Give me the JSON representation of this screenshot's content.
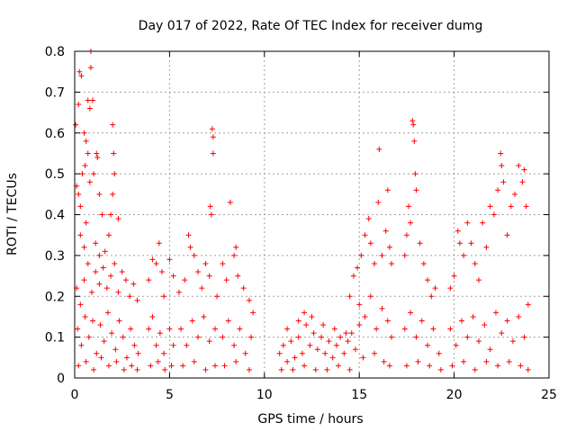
{
  "chart_data": {
    "type": "scatter",
    "title": "Day 017 of 2022, Rate Of TEC Index for receiver dumg",
    "xlabel": "GPS time / hours",
    "ylabel": "ROTI / TECUs",
    "xlim": [
      0,
      25
    ],
    "ylim": [
      0,
      0.8
    ],
    "xticks": [
      "0",
      "5",
      "10",
      "15",
      "20",
      "25"
    ],
    "yticks": [
      "0",
      "0.1",
      "0.2",
      "0.3",
      "0.4",
      "0.5",
      "0.6",
      "0.7",
      "0.8"
    ],
    "grid": true,
    "marker": "+",
    "color": "#ff0000",
    "x_ticks_values": [
      0,
      5,
      10,
      15,
      20,
      25
    ],
    "y_ticks_values": [
      0,
      0.1,
      0.2,
      0.3,
      0.4,
      0.5,
      0.6,
      0.7,
      0.8
    ],
    "series": [
      {
        "points": [
          [
            0.05,
            0.62
          ],
          [
            0.2,
            0.67
          ],
          [
            0.25,
            0.75
          ],
          [
            0.35,
            0.74
          ],
          [
            0.5,
            0.6
          ],
          [
            0.6,
            0.58
          ],
          [
            0.7,
            0.68
          ],
          [
            0.8,
            0.66
          ],
          [
            0.85,
            0.8
          ],
          [
            0.85,
            0.76
          ],
          [
            0.95,
            0.68
          ],
          [
            0.1,
            0.47
          ],
          [
            0.2,
            0.45
          ],
          [
            0.3,
            0.42
          ],
          [
            0.4,
            0.5
          ],
          [
            0.55,
            0.52
          ],
          [
            0.7,
            0.55
          ],
          [
            0.8,
            0.48
          ],
          [
            1.0,
            0.5
          ],
          [
            1.15,
            0.55
          ],
          [
            1.2,
            0.54
          ],
          [
            1.3,
            0.45
          ],
          [
            1.45,
            0.4
          ],
          [
            1.8,
            0.35
          ],
          [
            1.9,
            0.4
          ],
          [
            2.0,
            0.62
          ],
          [
            2.05,
            0.55
          ],
          [
            2.1,
            0.5
          ],
          [
            2.0,
            0.45
          ],
          [
            2.3,
            0.39
          ],
          [
            0.3,
            0.35
          ],
          [
            0.5,
            0.32
          ],
          [
            0.6,
            0.38
          ],
          [
            1.1,
            0.33
          ],
          [
            1.3,
            0.3
          ],
          [
            1.6,
            0.31
          ],
          [
            0.1,
            0.22
          ],
          [
            0.3,
            0.18
          ],
          [
            0.5,
            0.24
          ],
          [
            0.7,
            0.28
          ],
          [
            0.9,
            0.21
          ],
          [
            1.1,
            0.26
          ],
          [
            1.3,
            0.23
          ],
          [
            1.5,
            0.27
          ],
          [
            1.7,
            0.22
          ],
          [
            1.9,
            0.25
          ],
          [
            2.1,
            0.28
          ],
          [
            2.3,
            0.21
          ],
          [
            2.5,
            0.26
          ],
          [
            2.7,
            0.24
          ],
          [
            2.9,
            0.2
          ],
          [
            3.1,
            0.23
          ],
          [
            3.3,
            0.19
          ],
          [
            0.15,
            0.12
          ],
          [
            0.35,
            0.08
          ],
          [
            0.55,
            0.15
          ],
          [
            0.75,
            0.1
          ],
          [
            0.95,
            0.14
          ],
          [
            1.15,
            0.06
          ],
          [
            1.35,
            0.13
          ],
          [
            1.55,
            0.09
          ],
          [
            1.75,
            0.16
          ],
          [
            1.95,
            0.11
          ],
          [
            2.15,
            0.07
          ],
          [
            2.35,
            0.14
          ],
          [
            2.55,
            0.1
          ],
          [
            2.75,
            0.05
          ],
          [
            2.95,
            0.12
          ],
          [
            3.15,
            0.08
          ],
          [
            3.35,
            0.06
          ],
          [
            0.2,
            0.03
          ],
          [
            0.6,
            0.04
          ],
          [
            1.0,
            0.02
          ],
          [
            1.4,
            0.05
          ],
          [
            1.8,
            0.03
          ],
          [
            2.2,
            0.04
          ],
          [
            2.6,
            0.02
          ],
          [
            3.0,
            0.03
          ],
          [
            3.3,
            0.02
          ],
          [
            3.9,
            0.24
          ],
          [
            4.1,
            0.29
          ],
          [
            4.3,
            0.28
          ],
          [
            4.45,
            0.33
          ],
          [
            4.6,
            0.26
          ],
          [
            4.7,
            0.2
          ],
          [
            3.9,
            0.12
          ],
          [
            4.1,
            0.15
          ],
          [
            4.3,
            0.08
          ],
          [
            4.5,
            0.11
          ],
          [
            4.7,
            0.06
          ],
          [
            4.0,
            0.03
          ],
          [
            4.4,
            0.04
          ],
          [
            4.75,
            0.02
          ],
          [
            5.0,
            0.29
          ],
          [
            5.2,
            0.25
          ],
          [
            5.0,
            0.12
          ],
          [
            5.2,
            0.08
          ],
          [
            5.1,
            0.03
          ],
          [
            5.5,
            0.21
          ],
          [
            5.8,
            0.24
          ],
          [
            6.0,
            0.35
          ],
          [
            6.1,
            0.32
          ],
          [
            6.3,
            0.3
          ],
          [
            6.5,
            0.26
          ],
          [
            6.7,
            0.22
          ],
          [
            6.9,
            0.28
          ],
          [
            7.1,
            0.25
          ],
          [
            7.15,
            0.42
          ],
          [
            7.2,
            0.4
          ],
          [
            7.25,
            0.61
          ],
          [
            7.3,
            0.59
          ],
          [
            7.3,
            0.55
          ],
          [
            7.5,
            0.2
          ],
          [
            5.6,
            0.12
          ],
          [
            5.9,
            0.08
          ],
          [
            6.2,
            0.14
          ],
          [
            6.5,
            0.1
          ],
          [
            6.8,
            0.15
          ],
          [
            7.1,
            0.09
          ],
          [
            7.4,
            0.12
          ],
          [
            5.7,
            0.03
          ],
          [
            6.3,
            0.04
          ],
          [
            6.9,
            0.02
          ],
          [
            7.4,
            0.03
          ],
          [
            7.8,
            0.28
          ],
          [
            8.0,
            0.24
          ],
          [
            8.2,
            0.43
          ],
          [
            8.4,
            0.3
          ],
          [
            8.5,
            0.32
          ],
          [
            8.6,
            0.25
          ],
          [
            8.9,
            0.22
          ],
          [
            9.2,
            0.19
          ],
          [
            9.4,
            0.16
          ],
          [
            7.8,
            0.1
          ],
          [
            8.1,
            0.14
          ],
          [
            8.4,
            0.08
          ],
          [
            8.7,
            0.12
          ],
          [
            9.0,
            0.06
          ],
          [
            9.3,
            0.1
          ],
          [
            7.9,
            0.03
          ],
          [
            8.5,
            0.04
          ],
          [
            9.2,
            0.02
          ],
          [
            10.8,
            0.06
          ],
          [
            11.0,
            0.08
          ],
          [
            11.2,
            0.04
          ],
          [
            11.4,
            0.09
          ],
          [
            11.6,
            0.05
          ],
          [
            11.8,
            0.1
          ],
          [
            12.0,
            0.06
          ],
          [
            12.2,
            0.13
          ],
          [
            12.4,
            0.08
          ],
          [
            12.6,
            0.11
          ],
          [
            12.8,
            0.07
          ],
          [
            13.0,
            0.1
          ],
          [
            13.2,
            0.06
          ],
          [
            13.4,
            0.09
          ],
          [
            13.6,
            0.05
          ],
          [
            13.8,
            0.08
          ],
          [
            14.0,
            0.1
          ],
          [
            14.2,
            0.06
          ],
          [
            14.4,
            0.09
          ],
          [
            14.6,
            0.11
          ],
          [
            14.8,
            0.07
          ],
          [
            15.0,
            0.13
          ],
          [
            11.2,
            0.12
          ],
          [
            11.8,
            0.14
          ],
          [
            12.1,
            0.16
          ],
          [
            12.5,
            0.15
          ],
          [
            13.1,
            0.13
          ],
          [
            13.7,
            0.12
          ],
          [
            14.3,
            0.11
          ],
          [
            10.9,
            0.02
          ],
          [
            11.5,
            0.02
          ],
          [
            12.1,
            0.03
          ],
          [
            12.7,
            0.02
          ],
          [
            13.3,
            0.02
          ],
          [
            13.9,
            0.03
          ],
          [
            14.5,
            0.02
          ],
          [
            14.5,
            0.2
          ],
          [
            14.7,
            0.25
          ],
          [
            14.9,
            0.27
          ],
          [
            15.1,
            0.3
          ],
          [
            15.3,
            0.35
          ],
          [
            15.5,
            0.39
          ],
          [
            15.6,
            0.33
          ],
          [
            15.8,
            0.28
          ],
          [
            16.0,
            0.43
          ],
          [
            16.05,
            0.56
          ],
          [
            16.2,
            0.3
          ],
          [
            16.4,
            0.36
          ],
          [
            16.5,
            0.46
          ],
          [
            16.6,
            0.32
          ],
          [
            16.7,
            0.28
          ],
          [
            15.0,
            0.18
          ],
          [
            15.3,
            0.15
          ],
          [
            15.6,
            0.2
          ],
          [
            15.9,
            0.12
          ],
          [
            16.2,
            0.17
          ],
          [
            16.5,
            0.14
          ],
          [
            16.7,
            0.1
          ],
          [
            15.2,
            0.05
          ],
          [
            15.8,
            0.06
          ],
          [
            16.3,
            0.04
          ],
          [
            16.6,
            0.03
          ],
          [
            17.4,
            0.3
          ],
          [
            17.5,
            0.35
          ],
          [
            17.6,
            0.42
          ],
          [
            17.7,
            0.38
          ],
          [
            17.8,
            0.63
          ],
          [
            17.85,
            0.62
          ],
          [
            17.9,
            0.58
          ],
          [
            17.95,
            0.5
          ],
          [
            18.0,
            0.46
          ],
          [
            18.2,
            0.33
          ],
          [
            18.4,
            0.28
          ],
          [
            18.6,
            0.24
          ],
          [
            18.8,
            0.2
          ],
          [
            19.0,
            0.22
          ],
          [
            17.4,
            0.12
          ],
          [
            17.7,
            0.16
          ],
          [
            18.0,
            0.1
          ],
          [
            18.3,
            0.14
          ],
          [
            18.6,
            0.08
          ],
          [
            18.9,
            0.12
          ],
          [
            19.2,
            0.06
          ],
          [
            17.5,
            0.03
          ],
          [
            18.1,
            0.04
          ],
          [
            18.7,
            0.03
          ],
          [
            19.3,
            0.02
          ],
          [
            19.8,
            0.22
          ],
          [
            20.0,
            0.25
          ],
          [
            20.2,
            0.36
          ],
          [
            20.3,
            0.33
          ],
          [
            20.5,
            0.3
          ],
          [
            20.7,
            0.38
          ],
          [
            20.9,
            0.33
          ],
          [
            21.1,
            0.28
          ],
          [
            21.3,
            0.24
          ],
          [
            21.5,
            0.38
          ],
          [
            21.7,
            0.32
          ],
          [
            21.9,
            0.42
          ],
          [
            22.1,
            0.4
          ],
          [
            22.3,
            0.46
          ],
          [
            22.45,
            0.55
          ],
          [
            22.5,
            0.52
          ],
          [
            22.6,
            0.48
          ],
          [
            22.8,
            0.35
          ],
          [
            23.0,
            0.42
          ],
          [
            23.2,
            0.45
          ],
          [
            23.4,
            0.52
          ],
          [
            23.6,
            0.48
          ],
          [
            23.7,
            0.51
          ],
          [
            23.8,
            0.42
          ],
          [
            19.8,
            0.12
          ],
          [
            20.1,
            0.08
          ],
          [
            20.4,
            0.14
          ],
          [
            20.7,
            0.1
          ],
          [
            21.0,
            0.15
          ],
          [
            21.3,
            0.09
          ],
          [
            21.6,
            0.13
          ],
          [
            21.9,
            0.07
          ],
          [
            22.2,
            0.16
          ],
          [
            22.5,
            0.11
          ],
          [
            22.8,
            0.14
          ],
          [
            23.1,
            0.09
          ],
          [
            23.4,
            0.15
          ],
          [
            23.7,
            0.1
          ],
          [
            23.9,
            0.18
          ],
          [
            19.9,
            0.03
          ],
          [
            20.5,
            0.04
          ],
          [
            21.1,
            0.02
          ],
          [
            21.7,
            0.04
          ],
          [
            22.3,
            0.03
          ],
          [
            22.9,
            0.04
          ],
          [
            23.5,
            0.03
          ],
          [
            23.9,
            0.02
          ]
        ]
      }
    ]
  }
}
